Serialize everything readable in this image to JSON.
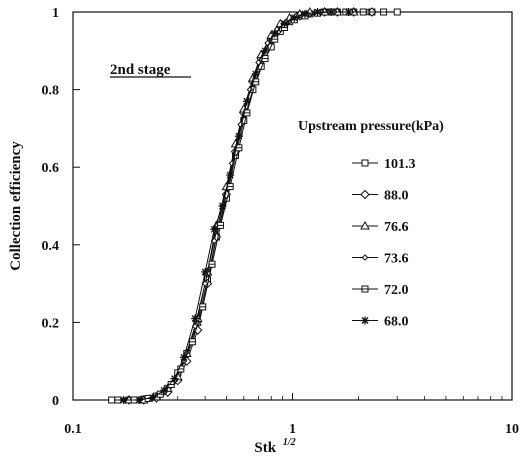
{
  "chart_data": {
    "type": "line",
    "title": "",
    "annotation": "2nd stage",
    "xlabel": "Stk",
    "xlabel_sup": "1/2",
    "ylabel": "Collection efficiency",
    "x_scale": "log",
    "xlim": [
      0.1,
      10
    ],
    "ylim": [
      0,
      1
    ],
    "x_ticks": [
      {
        "v": 0.1,
        "label": "0.1"
      },
      {
        "v": 1,
        "label": "1"
      },
      {
        "v": 10,
        "label": "10"
      }
    ],
    "y_ticks": [
      {
        "v": 0,
        "label": "0"
      },
      {
        "v": 0.2,
        "label": "0.2"
      },
      {
        "v": 0.4,
        "label": "0.4"
      },
      {
        "v": 0.6,
        "label": "0.6"
      },
      {
        "v": 0.8,
        "label": "0.8"
      },
      {
        "v": 1,
        "label": "1"
      }
    ],
    "grid": false,
    "legend_title": "Upstream pressure(kPa)",
    "legend_position": "right",
    "series": [
      {
        "name": "101.3",
        "marker": "square",
        "x": [
          0.15,
          0.18,
          0.21,
          0.24,
          0.27,
          0.3,
          0.33,
          0.37,
          0.41,
          0.45,
          0.5,
          0.55,
          0.6,
          0.66,
          0.72,
          0.8,
          0.88,
          0.97,
          1.08,
          1.2,
          1.4,
          1.6,
          1.9,
          2.3,
          3.0
        ],
        "y": [
          0.0,
          0.0,
          0.002,
          0.01,
          0.03,
          0.07,
          0.12,
          0.2,
          0.31,
          0.42,
          0.52,
          0.63,
          0.72,
          0.8,
          0.86,
          0.91,
          0.95,
          0.975,
          0.99,
          0.995,
          1.0,
          1.0,
          1.0,
          1.0,
          1.0
        ]
      },
      {
        "name": "88.0",
        "marker": "diamond",
        "x": [
          0.18,
          0.21,
          0.24,
          0.27,
          0.3,
          0.33,
          0.37,
          0.41,
          0.45,
          0.5,
          0.55,
          0.6,
          0.66,
          0.72,
          0.8,
          0.88,
          0.97,
          1.08,
          1.2,
          1.4,
          1.6,
          1.9,
          2.3
        ],
        "y": [
          0.0,
          0.0,
          0.005,
          0.02,
          0.05,
          0.1,
          0.18,
          0.3,
          0.42,
          0.53,
          0.64,
          0.74,
          0.82,
          0.88,
          0.93,
          0.96,
          0.98,
          0.99,
          0.997,
          1.0,
          1.0,
          1.0,
          1.0
        ]
      },
      {
        "name": "76.6",
        "marker": "triangle",
        "x": [
          0.18,
          0.21,
          0.24,
          0.27,
          0.3,
          0.33,
          0.37,
          0.41,
          0.45,
          0.5,
          0.55,
          0.6,
          0.66,
          0.72,
          0.8,
          0.88,
          0.97,
          1.08,
          1.2,
          1.4,
          1.6,
          1.9
        ],
        "y": [
          0.0,
          0.0,
          0.008,
          0.03,
          0.06,
          0.12,
          0.21,
          0.33,
          0.45,
          0.55,
          0.66,
          0.75,
          0.83,
          0.89,
          0.94,
          0.97,
          0.985,
          0.995,
          1.0,
          1.0,
          1.0,
          1.0
        ]
      },
      {
        "name": "73.6",
        "marker": "small-diamond",
        "x": [
          0.17,
          0.2,
          0.23,
          0.26,
          0.29,
          0.32,
          0.36,
          0.4,
          0.44,
          0.48,
          0.53,
          0.58,
          0.64,
          0.7,
          0.77,
          0.85,
          0.94,
          1.04,
          1.16,
          1.35,
          1.55,
          1.85,
          2.2
        ],
        "y": [
          0.0,
          0.0,
          0.005,
          0.02,
          0.05,
          0.1,
          0.19,
          0.3,
          0.41,
          0.5,
          0.61,
          0.71,
          0.8,
          0.87,
          0.92,
          0.955,
          0.975,
          0.99,
          0.996,
          1.0,
          1.0,
          1.0,
          1.0
        ]
      },
      {
        "name": "72.0",
        "marker": "square-line",
        "x": [
          0.16,
          0.19,
          0.22,
          0.25,
          0.28,
          0.31,
          0.35,
          0.39,
          0.43,
          0.47,
          0.52,
          0.57,
          0.62,
          0.68,
          0.75,
          0.83,
          0.92,
          1.02,
          1.14,
          1.3,
          1.5,
          1.75,
          2.1,
          2.6
        ],
        "y": [
          0.0,
          0.0,
          0.004,
          0.015,
          0.04,
          0.08,
          0.15,
          0.24,
          0.35,
          0.45,
          0.55,
          0.65,
          0.74,
          0.82,
          0.88,
          0.93,
          0.96,
          0.98,
          0.99,
          0.997,
          1.0,
          1.0,
          1.0,
          1.0
        ]
      },
      {
        "name": "68.0",
        "marker": "star",
        "x": [
          0.17,
          0.2,
          0.23,
          0.26,
          0.29,
          0.32,
          0.36,
          0.4,
          0.44,
          0.48,
          0.52,
          0.57,
          0.62,
          0.68,
          0.75,
          0.83,
          0.92,
          1.02,
          1.14,
          1.3,
          1.5,
          1.8
        ],
        "y": [
          0.0,
          0.0,
          0.006,
          0.025,
          0.055,
          0.11,
          0.21,
          0.33,
          0.44,
          0.5,
          0.58,
          0.68,
          0.77,
          0.84,
          0.9,
          0.945,
          0.97,
          0.985,
          0.995,
          1.0,
          1.0,
          1.0
        ]
      }
    ]
  }
}
